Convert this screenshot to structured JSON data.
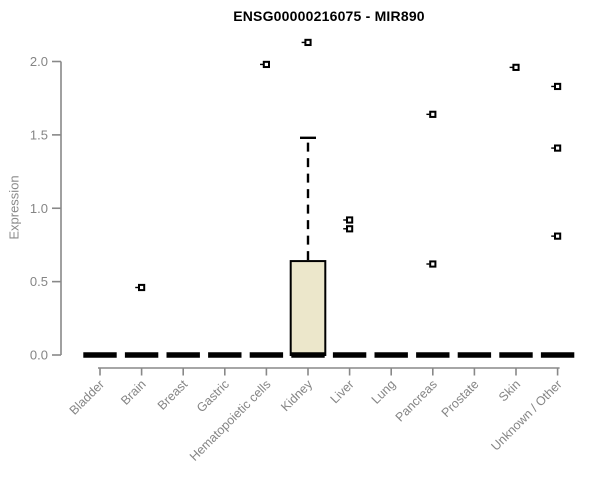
{
  "title": "ENSG00000216075 - MIR890",
  "chart_data": {
    "type": "boxplot",
    "title": "ENSG00000216075 - MIR890",
    "xlabel": "",
    "ylabel": "Expression",
    "ylim": [
      0,
      2.2
    ],
    "yticks": [
      0,
      0.5,
      1,
      1.5,
      2
    ],
    "grid": false,
    "legend": "none",
    "categories": [
      "Bladder",
      "Brain",
      "Breast",
      "Gastric",
      "Hematopoietic cells",
      "Kidney",
      "Liver",
      "Lung",
      "Pancreas",
      "Prostate",
      "Skin",
      "Unknown / Other"
    ],
    "boxes": [
      {
        "label": "Bladder",
        "q1": 0,
        "median": 0,
        "q3": 0,
        "whisker_low": 0,
        "whisker_high": 0,
        "outliers": []
      },
      {
        "label": "Brain",
        "q1": 0,
        "median": 0,
        "q3": 0,
        "whisker_low": 0,
        "whisker_high": 0,
        "outliers": [
          0.46
        ]
      },
      {
        "label": "Breast",
        "q1": 0,
        "median": 0,
        "q3": 0,
        "whisker_low": 0,
        "whisker_high": 0,
        "outliers": []
      },
      {
        "label": "Gastric",
        "q1": 0,
        "median": 0,
        "q3": 0,
        "whisker_low": 0,
        "whisker_high": 0,
        "outliers": []
      },
      {
        "label": "Hematopoietic cells",
        "q1": 0,
        "median": 0,
        "q3": 0,
        "whisker_low": 0,
        "whisker_high": 0,
        "outliers": [
          1.98
        ]
      },
      {
        "label": "Kidney",
        "q1": 0,
        "median": 0,
        "q3": 0.64,
        "whisker_low": 0,
        "whisker_high": 1.48,
        "outliers": [
          2.13
        ]
      },
      {
        "label": "Liver",
        "q1": 0,
        "median": 0,
        "q3": 0,
        "whisker_low": 0,
        "whisker_high": 0,
        "outliers": [
          0.92,
          0.86
        ]
      },
      {
        "label": "Lung",
        "q1": 0,
        "median": 0,
        "q3": 0,
        "whisker_low": 0,
        "whisker_high": 0,
        "outliers": []
      },
      {
        "label": "Pancreas",
        "q1": 0,
        "median": 0,
        "q3": 0,
        "whisker_low": 0,
        "whisker_high": 0,
        "outliers": [
          1.64,
          0.62
        ]
      },
      {
        "label": "Prostate",
        "q1": 0,
        "median": 0,
        "q3": 0,
        "whisker_low": 0,
        "whisker_high": 0,
        "outliers": []
      },
      {
        "label": "Skin",
        "q1": 0,
        "median": 0,
        "q3": 0,
        "whisker_low": 0,
        "whisker_high": 0,
        "outliers": [
          1.96
        ]
      },
      {
        "label": "Unknown / Other",
        "q1": 0,
        "median": 0,
        "q3": 0,
        "whisker_low": 0,
        "whisker_high": 0,
        "outliers": [
          1.83,
          1.41,
          0.81
        ]
      }
    ],
    "colors": {
      "box_fill": "#ECE7CB",
      "box_border": "#000000",
      "whisker": "#000000",
      "outlier": "#000000",
      "axis": "#888888",
      "tick_label": "#858585",
      "title": "#000000"
    }
  }
}
